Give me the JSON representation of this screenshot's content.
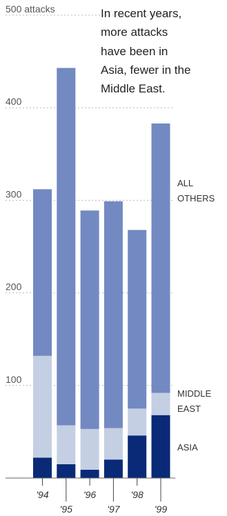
{
  "chart_data": {
    "type": "bar",
    "stacked": true,
    "categories": [
      "'94",
      "'95",
      "'96",
      "'97",
      "'98",
      "'99"
    ],
    "series": [
      {
        "name": "ASIA",
        "values": [
          22,
          15,
          9,
          20,
          46,
          68
        ],
        "color": "#0a2a78"
      },
      {
        "name": "MIDDLE EAST",
        "values": [
          110,
          42,
          44,
          34,
          29,
          24
        ],
        "color": "#c4cfe3"
      },
      {
        "name": "ALL OTHERS",
        "values": [
          180,
          386,
          236,
          245,
          193,
          291
        ],
        "color": "#7389c2"
      }
    ],
    "ylim": [
      0,
      500
    ],
    "yticks": [
      {
        "value": 100,
        "label": "100"
      },
      {
        "value": 200,
        "label": "200"
      },
      {
        "value": 300,
        "label": "300"
      },
      {
        "value": 400,
        "label": "400"
      },
      {
        "value": 500,
        "label": "500 attacks"
      }
    ],
    "title": [
      "In recent years,",
      "more attacks",
      "have been in",
      "Asia, fewer in the",
      "Middle East."
    ],
    "legend": {
      "all_others": [
        "ALL",
        "OTHERS"
      ],
      "middle_east": [
        "MIDDLE",
        "EAST"
      ],
      "asia": [
        "ASIA"
      ]
    },
    "grid": true,
    "legend_position": "right"
  }
}
